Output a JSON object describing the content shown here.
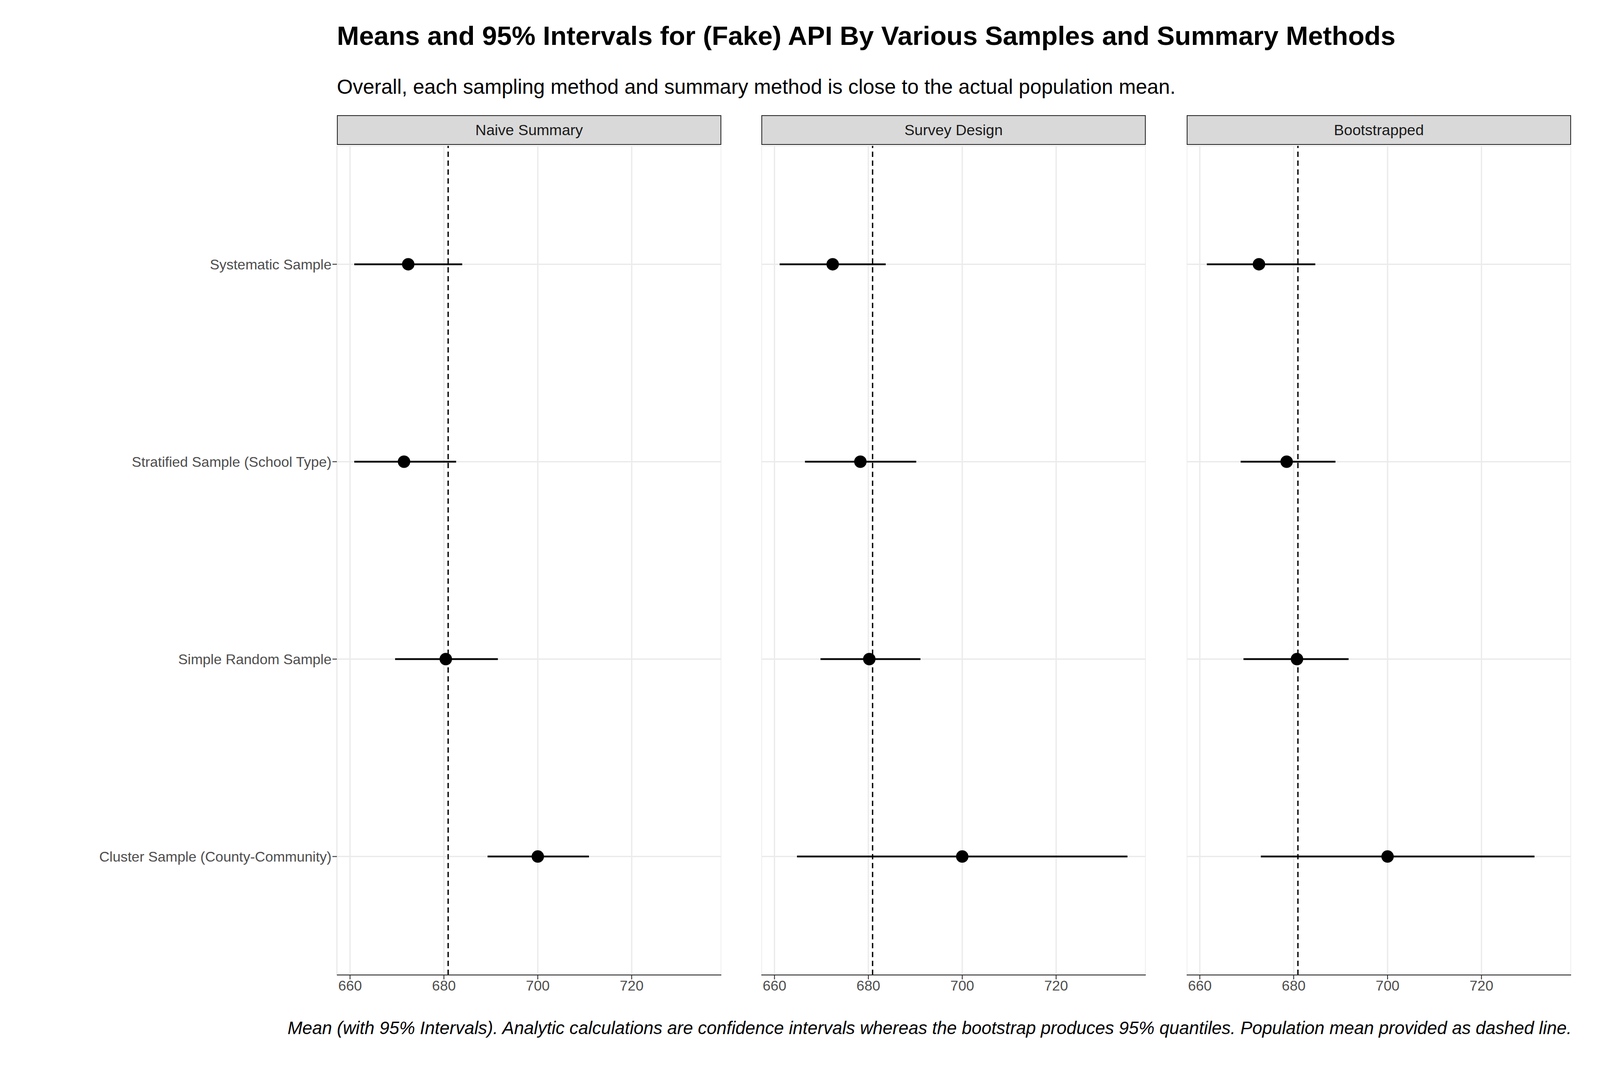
{
  "chart_data": {
    "type": "dot_interval",
    "title": "Means and 95% Intervals for (Fake) API By Various Samples and Summary Methods",
    "subtitle": "Overall, each sampling method and summary method is close to the actual population mean.",
    "caption": "Mean (with 95% Intervals). Analytic calculations are confidence intervals whereas the bootstrap produces 95% quantiles. Population mean provided as dashed line.",
    "categories": [
      "Systematic Sample",
      "Stratified Sample (School Type)",
      "Simple Random Sample",
      "Cluster Sample (County-Community)"
    ],
    "panels": [
      {
        "title": "Naive Summary",
        "values": [
          672.4,
          671.5,
          680.4,
          700.0
        ],
        "lower": [
          660.9,
          660.9,
          669.6,
          689.3
        ],
        "upper": [
          683.9,
          682.6,
          691.5,
          710.9
        ]
      },
      {
        "title": "Survey Design",
        "values": [
          672.4,
          678.3,
          680.2,
          700.0
        ],
        "lower": [
          661.1,
          666.5,
          669.8,
          664.8
        ],
        "upper": [
          683.7,
          690.2,
          691.1,
          735.2
        ]
      },
      {
        "title": "Bootstrapped",
        "values": [
          672.6,
          678.5,
          680.7,
          700.0
        ],
        "lower": [
          661.5,
          668.7,
          669.3,
          673.0
        ],
        "upper": [
          684.6,
          688.9,
          691.7,
          731.3
        ]
      }
    ],
    "population_mean": 680.9,
    "xlim": [
      657.2,
      739.1
    ],
    "xticks": [
      660,
      680,
      700,
      720
    ],
    "grid": true,
    "color": "#000000"
  }
}
